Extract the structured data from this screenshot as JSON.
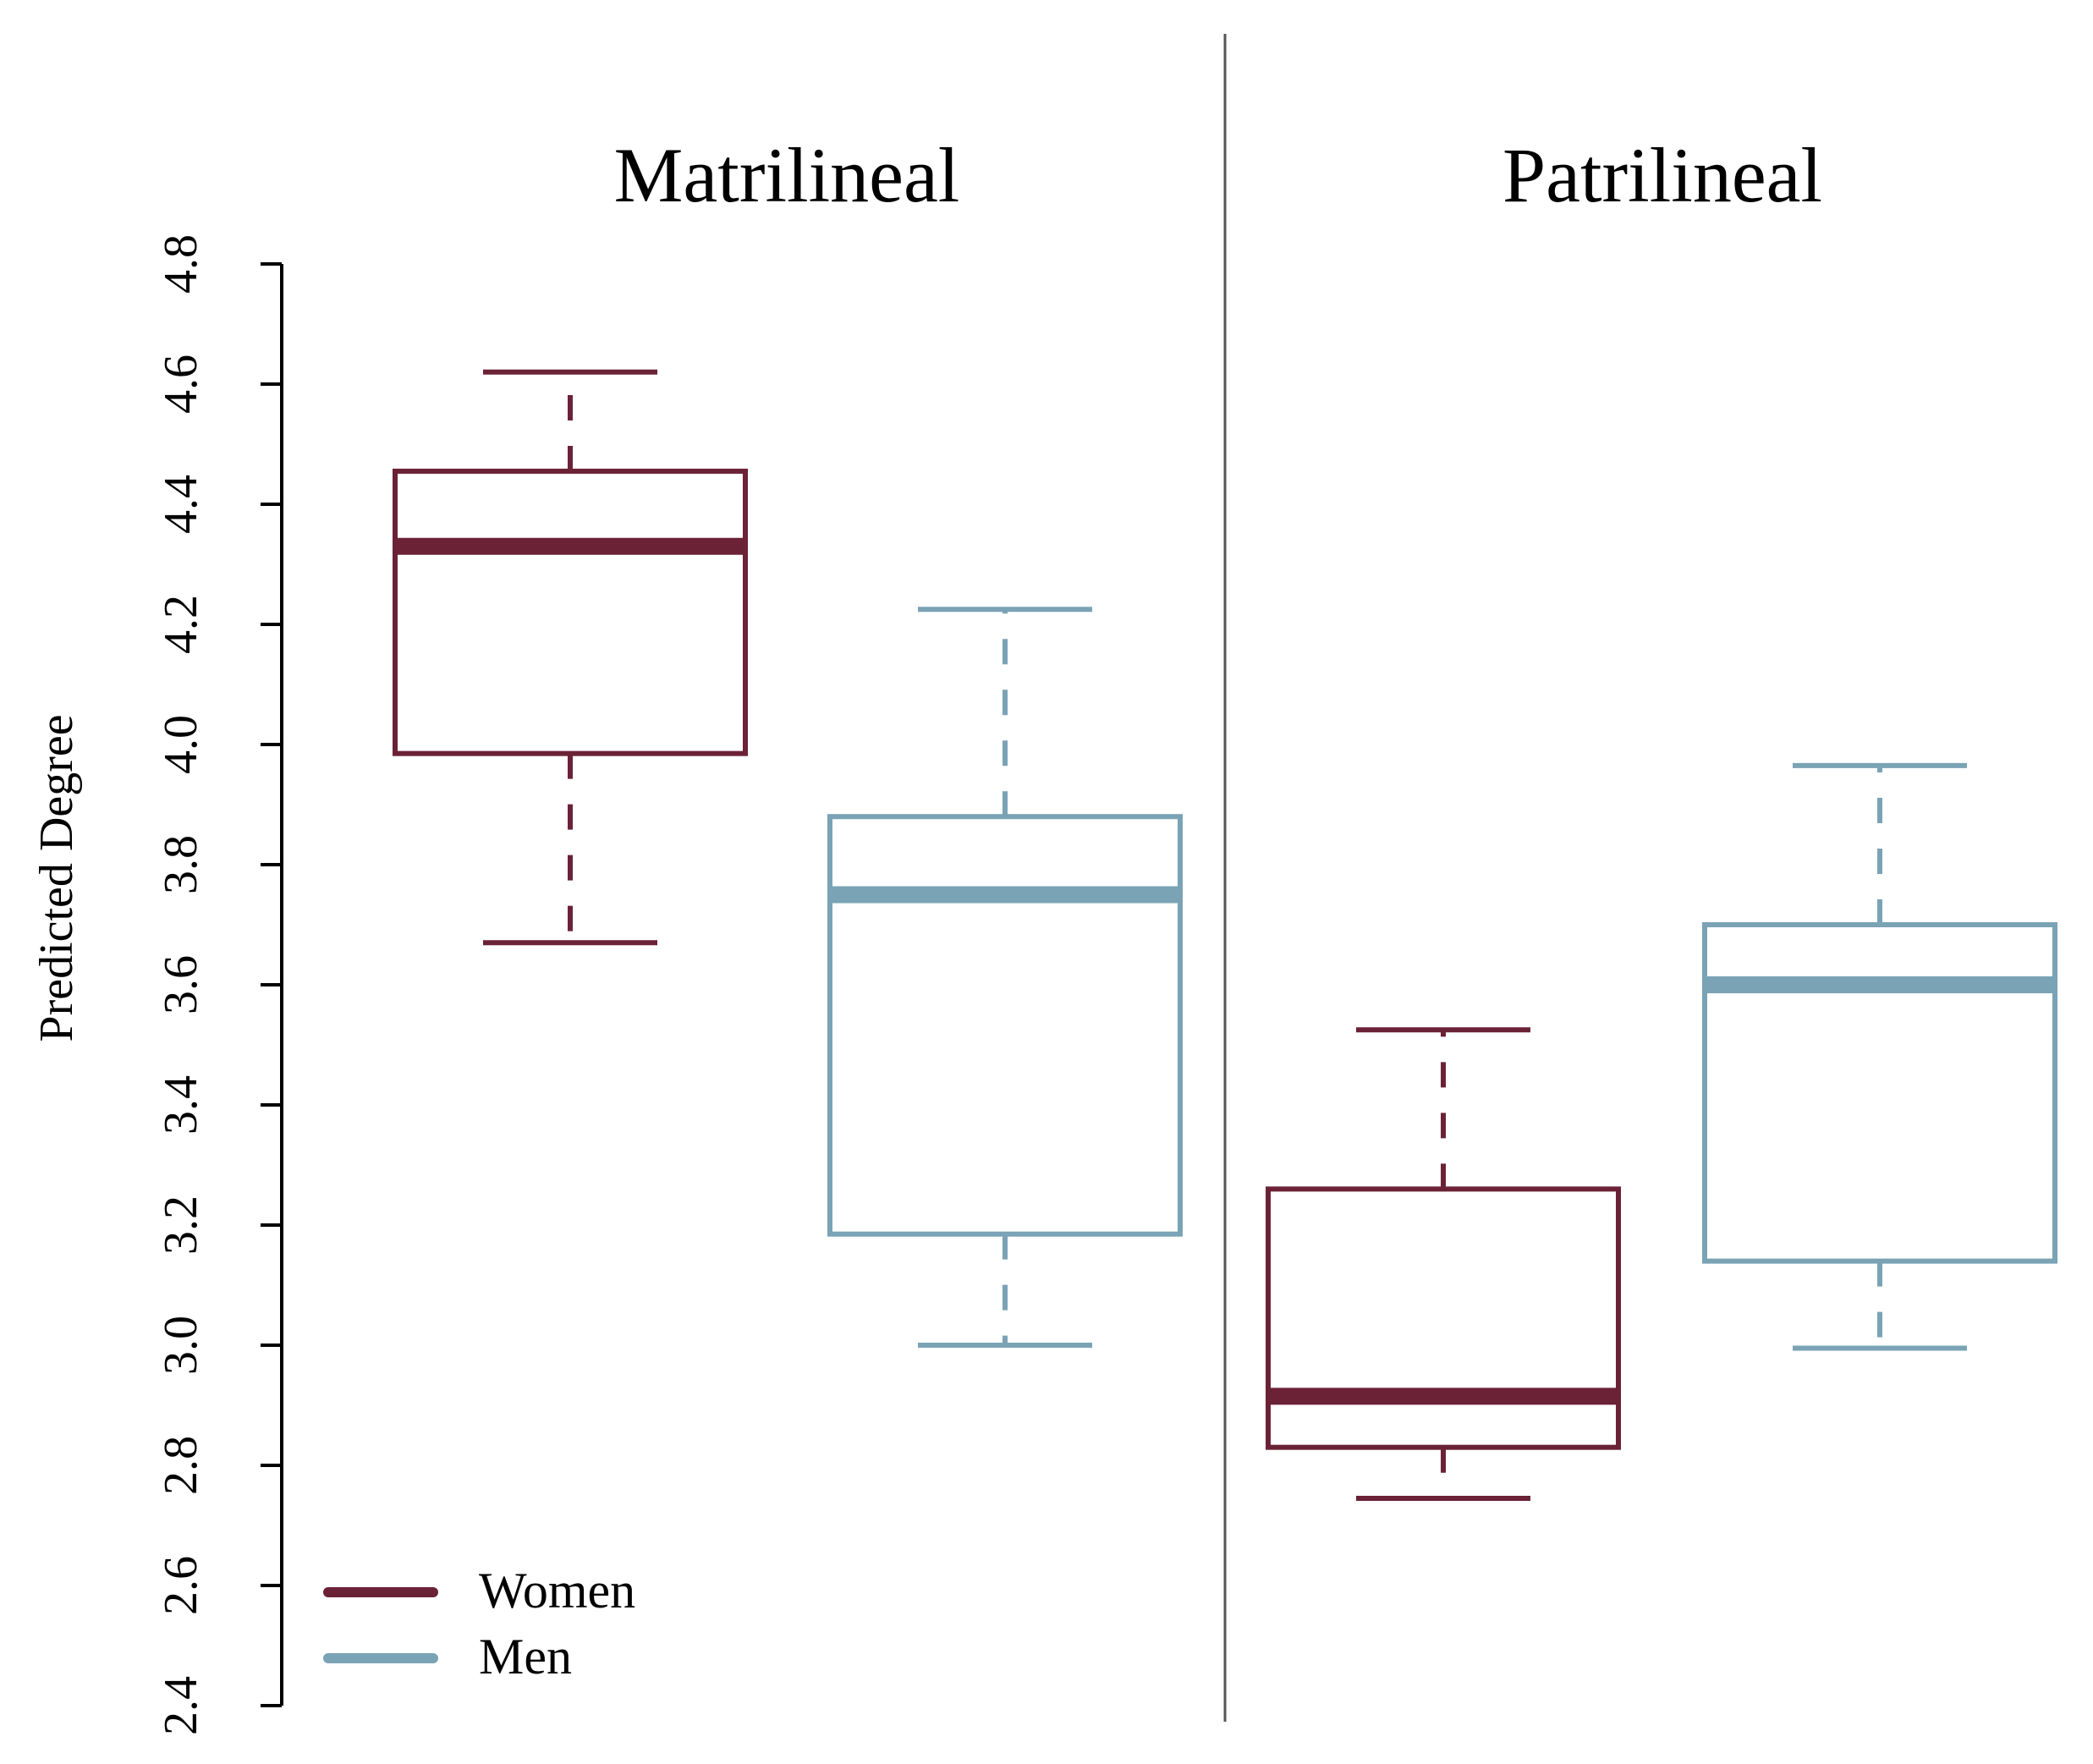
{
  "chart_data": {
    "type": "boxplot",
    "ylabel": "Predicted Degree",
    "ylim": [
      2.4,
      4.8
    ],
    "yticks": [
      "2.4",
      "2.6",
      "2.8",
      "3.0",
      "3.2",
      "3.4",
      "3.6",
      "3.8",
      "4.0",
      "4.2",
      "4.4",
      "4.6",
      "4.8"
    ],
    "panels": [
      {
        "title": "Matrilineal",
        "boxes": [
          {
            "group": "Women",
            "color": "#6b2236",
            "whisker_low": 3.67,
            "q1": 3.985,
            "median": 4.33,
            "q3": 4.455,
            "whisker_high": 4.62
          },
          {
            "group": "Men",
            "color": "#7aa3b5",
            "whisker_low": 3.0,
            "q1": 3.185,
            "median": 3.75,
            "q3": 3.88,
            "whisker_high": 4.225
          }
        ]
      },
      {
        "title": "Patrilineal",
        "boxes": [
          {
            "group": "Women",
            "color": "#6b2236",
            "whisker_low": 2.745,
            "q1": 2.83,
            "median": 2.915,
            "q3": 3.26,
            "whisker_high": 3.525
          },
          {
            "group": "Men",
            "color": "#7aa3b5",
            "whisker_low": 2.995,
            "q1": 3.14,
            "median": 3.6,
            "q3": 3.7,
            "whisker_high": 3.965
          }
        ]
      }
    ],
    "legend": {
      "position": "bottom-left",
      "entries": [
        {
          "label": "Women",
          "color": "#6b2236"
        },
        {
          "label": "Men",
          "color": "#7aa3b5"
        }
      ]
    }
  }
}
